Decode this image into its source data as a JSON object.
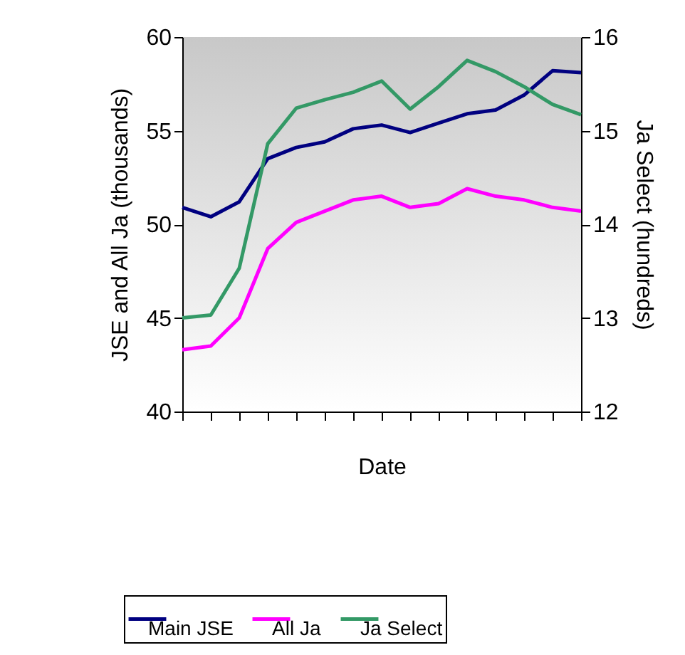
{
  "chart_data": {
    "type": "line",
    "xlabel": "Date",
    "ylabel": "JSE and All Ja (thousands)",
    "y2label": "Ja Select (hundreds)",
    "categories": [
      null,
      null,
      null,
      null,
      null,
      null,
      null,
      null,
      null,
      null,
      null,
      null,
      null,
      null,
      null
    ],
    "series": [
      {
        "name": "Main JSE",
        "color": "#000080",
        "values": [
          50.9,
          50.4,
          51.2,
          53.5,
          54.1,
          54.4,
          55.1,
          55.3,
          54.9,
          55.4,
          55.9,
          56.1,
          56.9,
          58.2,
          58.1
        ]
      },
      {
        "name": "All Ja",
        "color": "#ff00ff",
        "values": [
          43.3,
          43.5,
          45.0,
          48.7,
          50.1,
          50.7,
          51.3,
          51.5,
          50.9,
          51.1,
          51.9,
          51.5,
          51.3,
          50.9,
          50.7
        ]
      },
      {
        "name": "Ja Select",
        "color": "#339966",
        "axis": "y2",
        "values": [
          13.0,
          13.03,
          13.53,
          14.86,
          15.24,
          15.33,
          15.41,
          15.53,
          15.23,
          15.47,
          15.75,
          15.63,
          15.47,
          15.28,
          15.17
        ]
      }
    ],
    "ylim": [
      40,
      60
    ],
    "yticks": [
      40,
      45,
      50,
      55,
      60
    ],
    "y2lim": [
      12,
      16
    ],
    "y2ticks": [
      12,
      13,
      14,
      15,
      16
    ],
    "grid": false,
    "legend": "bottom",
    "marker": "none",
    "line_style": "solid"
  }
}
